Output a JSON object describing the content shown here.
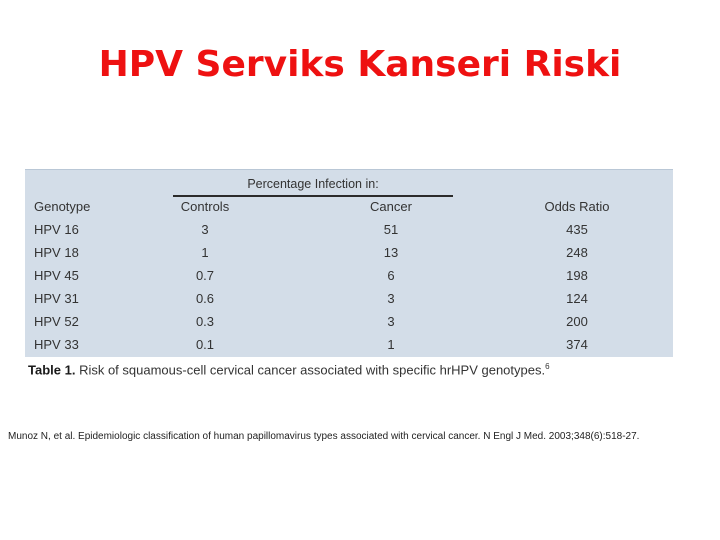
{
  "slide": {
    "title": "HPV Serviks Kanseri Riski"
  },
  "table": {
    "group_header": "Percentage Infection in:",
    "columns": [
      "Genotype",
      "Controls",
      "Cancer",
      "Odds Ratio"
    ],
    "rows": [
      [
        "HPV 16",
        "3",
        "51",
        "435"
      ],
      [
        "HPV 18",
        "1",
        "13",
        "248"
      ],
      [
        "HPV 45",
        "0.7",
        "6",
        "198"
      ],
      [
        "HPV 31",
        "0.6",
        "3",
        "124"
      ],
      [
        "HPV 52",
        "0.3",
        "3",
        "200"
      ],
      [
        "HPV 33",
        "0.1",
        "1",
        "374"
      ]
    ],
    "caption_label": "Table 1.",
    "caption_text": " Risk of squamous-cell cervical cancer associated with specific hrHPV genotypes.",
    "caption_ref": "6"
  },
  "citation": "Munoz N, et al. Epidemiologic classification of human papillomavirus types associated with cervical cancer. N Engl J Med. 2003;348(6):518-27."
}
